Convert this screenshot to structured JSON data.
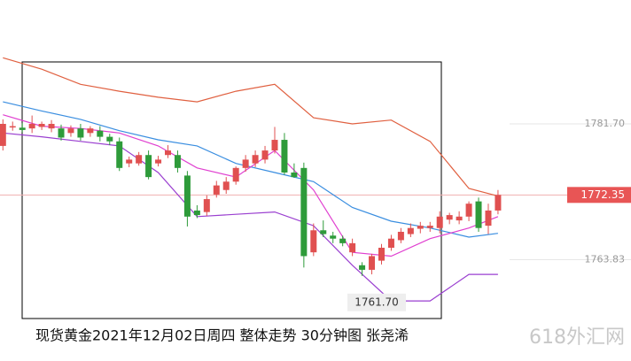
{
  "chart_data": {
    "type": "candlestick",
    "title": "现货黄金2021年12月02日周四  整体走势 30分钟图  张尧浠",
    "watermark": "618外汇网",
    "ylim": [
      1750.5,
      1798.0
    ],
    "xlim": [
      -0.3,
      64.7
    ],
    "yticks": [
      {
        "value": 1781.7,
        "label": "1781.70"
      },
      {
        "value": 1763.83,
        "label": "1763.83"
      }
    ],
    "last_price": 1772.35,
    "low_annotation": {
      "value": 1761.7,
      "label": "1761.70"
    },
    "up_color": "#e05050",
    "down_color": "#2e9b3a",
    "open": [
      1778.8,
      1781.3,
      1781.2,
      1781.1,
      1781.3,
      1781.1,
      1781.1,
      1780.5,
      1781.1,
      1780.5,
      1780.8,
      1780.0,
      1779.4,
      1776.5,
      1776.5,
      1777.6,
      1776.5,
      1777.6,
      1777.6,
      1774.9,
      1770.3,
      1770.1,
      1772.4,
      1773.0,
      1774.1,
      1775.9,
      1776.5,
      1777.0,
      1778.2,
      1779.6,
      1775.3,
      1775.9,
      1764.8,
      1767.7,
      1767.0,
      1766.6,
      1764.8,
      1763.1,
      1762.5,
      1763.7,
      1765.4,
      1766.4,
      1767.2,
      1767.9,
      1768.0,
      1768.0,
      1769.1,
      1769.0,
      1769.5,
      1771.5,
      1768.3,
      1770.3
    ],
    "high": [
      1782.3,
      1782.0,
      1781.8,
      1782.8,
      1782.0,
      1782.2,
      1781.6,
      1781.5,
      1781.7,
      1781.4,
      1781.4,
      1780.4,
      1779.9,
      1777.4,
      1778.0,
      1778.2,
      1777.5,
      1778.9,
      1778.2,
      1775.5,
      1771.0,
      1772.3,
      1774.2,
      1774.7,
      1776.1,
      1777.6,
      1778.2,
      1778.8,
      1781.3,
      1780.5,
      1776.5,
      1776.6,
      1768.6,
      1769.0,
      1767.5,
      1767.0,
      1766.6,
      1763.5,
      1764.6,
      1765.9,
      1767.1,
      1768.0,
      1768.6,
      1768.8,
      1768.8,
      1770.2,
      1770.0,
      1770.2,
      1771.5,
      1772.0,
      1771.2,
      1773.0
    ],
    "low": [
      1778.2,
      1780.8,
      1780.6,
      1780.5,
      1780.9,
      1780.6,
      1779.5,
      1780.0,
      1779.5,
      1780.0,
      1779.4,
      1778.9,
      1775.5,
      1776.0,
      1776.2,
      1774.4,
      1776.1,
      1777.2,
      1775.3,
      1768.2,
      1769.3,
      1769.6,
      1772.0,
      1772.5,
      1773.7,
      1775.4,
      1776.0,
      1776.5,
      1777.8,
      1775.0,
      1774.6,
      1762.8,
      1764.3,
      1766.8,
      1766.0,
      1765.6,
      1764.3,
      1761.7,
      1761.9,
      1763.2,
      1765.0,
      1766.0,
      1766.8,
      1767.3,
      1767.5,
      1767.3,
      1768.5,
      1768.5,
      1768.9,
      1767.5,
      1767.2,
      1769.8
    ],
    "close": [
      1781.7,
      1781.4,
      1780.9,
      1781.7,
      1781.7,
      1781.7,
      1779.9,
      1781.1,
      1779.9,
      1781.1,
      1780.0,
      1779.4,
      1775.9,
      1777.0,
      1777.6,
      1774.7,
      1777.0,
      1778.2,
      1775.9,
      1769.5,
      1769.7,
      1771.8,
      1773.6,
      1774.1,
      1775.9,
      1777.0,
      1777.6,
      1778.2,
      1779.6,
      1775.3,
      1774.7,
      1764.3,
      1767.7,
      1767.2,
      1766.6,
      1766.0,
      1766.0,
      1762.5,
      1764.3,
      1765.4,
      1766.6,
      1767.5,
      1768.0,
      1768.3,
      1768.3,
      1769.5,
      1769.7,
      1769.5,
      1771.2,
      1768.0,
      1770.3,
      1772.35
    ],
    "lines": [
      {
        "color": "#e06040",
        "x": [
          0,
          4,
          8,
          12,
          16,
          20,
          24,
          28,
          32,
          36,
          40,
          44,
          48,
          51
        ],
        "values": [
          1790.4,
          1788.9,
          1786.9,
          1786.0,
          1785.2,
          1784.6,
          1786.0,
          1786.9,
          1782.5,
          1781.7,
          1782.2,
          1779.4,
          1773.2,
          1772.2
        ]
      },
      {
        "color": "#9a3fd0",
        "x": [
          0,
          4,
          8,
          12,
          16,
          20,
          24,
          28,
          32,
          36,
          40,
          44,
          48,
          51
        ],
        "values": [
          1780.5,
          1780.0,
          1779.4,
          1778.8,
          1775.3,
          1769.5,
          1769.8,
          1770.1,
          1768.3,
          1763.1,
          1758.4,
          1758.4,
          1761.9,
          1761.9
        ]
      },
      {
        "color": "#3a8ee0",
        "x": [
          0,
          4,
          8,
          12,
          16,
          20,
          24,
          28,
          32,
          36,
          40,
          44,
          48,
          51
        ],
        "values": [
          1784.6,
          1783.4,
          1782.3,
          1780.8,
          1779.6,
          1778.8,
          1776.5,
          1775.3,
          1774.1,
          1770.7,
          1768.9,
          1768.0,
          1766.8,
          1767.3
        ]
      },
      {
        "color": "#e040d0",
        "x": [
          0,
          4,
          8,
          12,
          16,
          20,
          24,
          28,
          32,
          36,
          40,
          44,
          48,
          51
        ],
        "values": [
          1782.9,
          1781.4,
          1781.1,
          1780.5,
          1778.8,
          1775.9,
          1774.7,
          1778.2,
          1773.0,
          1764.8,
          1764.3,
          1766.6,
          1768.0,
          1769.5
        ]
      }
    ]
  }
}
